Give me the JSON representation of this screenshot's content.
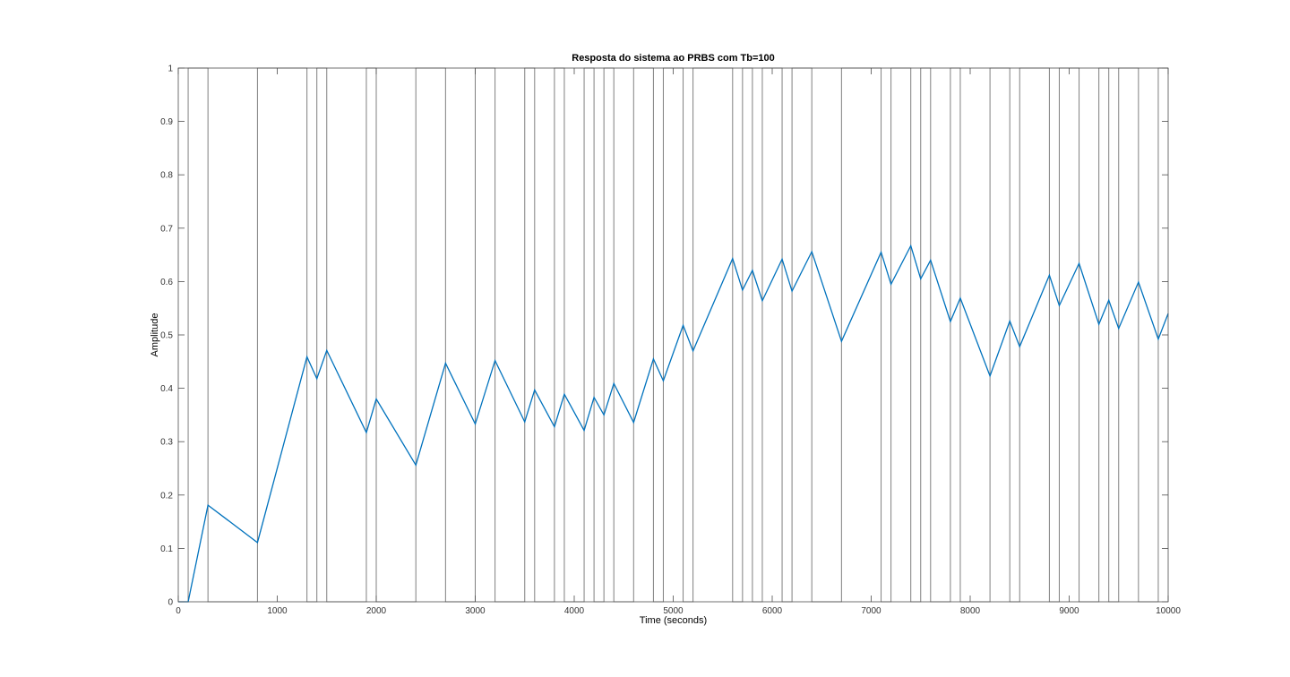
{
  "chart_data": {
    "type": "line",
    "title": "Resposta do sistema ao PRBS com Tb=100",
    "xlabel": "Time (seconds)",
    "ylabel": "Amplitude",
    "xlim": [
      0,
      10000
    ],
    "ylim": [
      0,
      1
    ],
    "x_ticks": [
      "0",
      "1000",
      "2000",
      "3000",
      "4000",
      "5000",
      "6000",
      "7000",
      "8000",
      "9000",
      "10000"
    ],
    "y_ticks": [
      "0",
      "0.1",
      "0.2",
      "0.3",
      "0.4",
      "0.5",
      "0.6",
      "0.7",
      "0.8",
      "0.9",
      "1"
    ],
    "grid": false,
    "legend": "none",
    "colors": {
      "input": "#808080",
      "response": "#0072bd",
      "axes": "#4d4d4d"
    },
    "series": [
      {
        "x": [
          0,
          100,
          100,
          300,
          300,
          800,
          800,
          1300,
          1300,
          1400,
          1400,
          1500,
          1500,
          1900,
          1900,
          2000,
          2000,
          2400,
          2400,
          2700,
          2700,
          3000,
          3000,
          3200,
          3200,
          3500,
          3500,
          3600,
          3600,
          3800,
          3800,
          3900,
          3900,
          4100,
          4100,
          4200,
          4200,
          4300,
          4300,
          4400,
          4400,
          4600,
          4600,
          4800,
          4800,
          4900,
          4900,
          5100,
          5100,
          5200,
          5200,
          5600,
          5600,
          5700,
          5700,
          5800,
          5800,
          5900,
          5900,
          6100,
          6100,
          6200,
          6200,
          6400,
          6400,
          6700,
          6700,
          7100,
          7100,
          7200,
          7200,
          7400,
          7400,
          7500,
          7500,
          7600,
          7600,
          7800,
          7800,
          7900,
          7900,
          8200,
          8200,
          8400,
          8400,
          8500,
          8500,
          8800,
          8800,
          8900,
          8900,
          9100,
          9100,
          9300,
          9300,
          9400,
          9400,
          9500,
          9500,
          9700,
          9700,
          9900,
          9900,
          10000
        ],
        "y": [
          0,
          0,
          1,
          1,
          0,
          0,
          1,
          1,
          0,
          0,
          1,
          1,
          0,
          0,
          1,
          1,
          0,
          0,
          1,
          1,
          0,
          0,
          1,
          1,
          0,
          0,
          1,
          1,
          0,
          0,
          1,
          1,
          0,
          0,
          1,
          1,
          0,
          0,
          1,
          1,
          0,
          0,
          1,
          1,
          0,
          0,
          1,
          1,
          0,
          0,
          1,
          1,
          0,
          0,
          1,
          1,
          0,
          0,
          1,
          1,
          0,
          0,
          1,
          1,
          0,
          0,
          1,
          1,
          0,
          0,
          1,
          1,
          0,
          0,
          1,
          1,
          0,
          0,
          1,
          1,
          0,
          0,
          1,
          1,
          0,
          0,
          1,
          1,
          0,
          0,
          1,
          1,
          0,
          0,
          1,
          1,
          0,
          0,
          1,
          1,
          0,
          0,
          1,
          1
        ]
      },
      {
        "x": [
          0,
          100,
          300,
          800,
          1300,
          1400,
          1500,
          1900,
          2000,
          2400,
          2700,
          3000,
          3200,
          3500,
          3600,
          3800,
          3900,
          4100,
          4200,
          4300,
          4400,
          4600,
          4800,
          4900,
          5100,
          5200,
          5600,
          5700,
          5800,
          5900,
          6100,
          6200,
          6400,
          6700,
          7100,
          7200,
          7400,
          7500,
          7600,
          7800,
          7900,
          8200,
          8400,
          8500,
          8800,
          8900,
          9100,
          9300,
          9400,
          9500,
          9700,
          9900,
          10000
        ],
        "y": [
          0,
          0,
          0.181,
          0.111,
          0.459,
          0.418,
          0.471,
          0.317,
          0.38,
          0.256,
          0.447,
          0.333,
          0.452,
          0.337,
          0.397,
          0.328,
          0.389,
          0.321,
          0.383,
          0.35,
          0.409,
          0.336,
          0.455,
          0.414,
          0.518,
          0.47,
          0.643,
          0.584,
          0.621,
          0.564,
          0.642,
          0.582,
          0.656,
          0.488,
          0.655,
          0.595,
          0.667,
          0.605,
          0.64,
          0.525,
          0.569,
          0.423,
          0.526,
          0.478,
          0.612,
          0.555,
          0.634,
          0.52,
          0.565,
          0.512,
          0.599,
          0.492,
          0.54
        ]
      }
    ]
  }
}
